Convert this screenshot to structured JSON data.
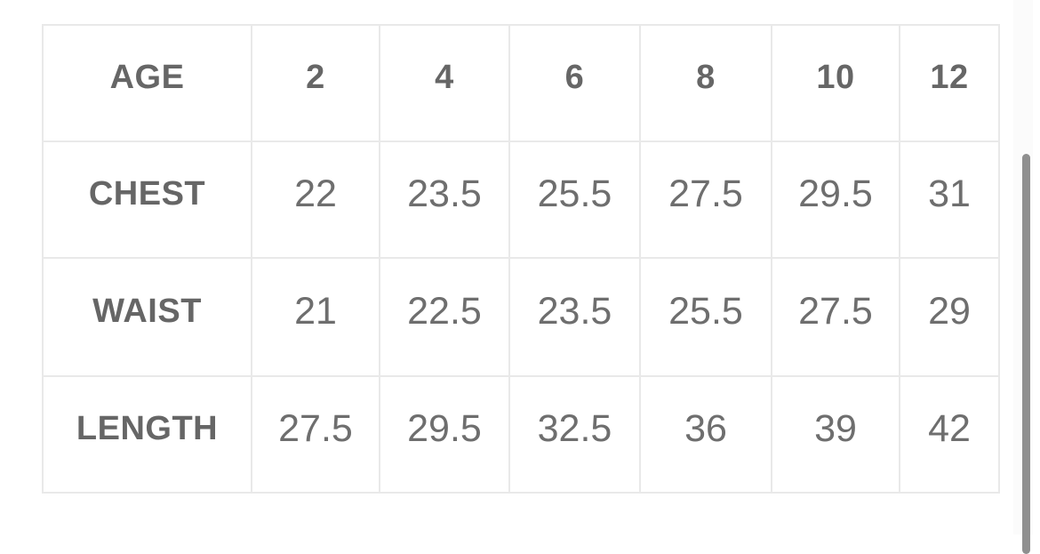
{
  "size_chart": {
    "columns": [
      "AGE",
      "2",
      "4",
      "6",
      "8",
      "10",
      "12"
    ],
    "rows": [
      {
        "label": "CHEST",
        "values": [
          "22",
          "23.5",
          "25.5",
          "27.5",
          "29.5",
          "31"
        ]
      },
      {
        "label": "WAIST",
        "values": [
          "21",
          "22.5",
          "23.5",
          "25.5",
          "27.5",
          "29"
        ]
      },
      {
        "label": "LENGTH",
        "values": [
          "27.5",
          "29.5",
          "32.5",
          "36",
          "39",
          "42"
        ]
      }
    ]
  },
  "chart_data": {
    "type": "table",
    "columns": [
      "AGE",
      "2",
      "4",
      "6",
      "8",
      "10",
      "12"
    ],
    "rows": [
      [
        "CHEST",
        22,
        23.5,
        25.5,
        27.5,
        29.5,
        31
      ],
      [
        "WAIST",
        21,
        22.5,
        23.5,
        25.5,
        27.5,
        29
      ],
      [
        "LENGTH",
        27.5,
        29.5,
        32.5,
        36,
        39,
        42
      ]
    ]
  },
  "colors": {
    "background": "#ffffff",
    "text_bold": "#666666",
    "text_value": "#6e6e6e",
    "gridline": "#e9e9e9",
    "scrollbar_thumb": "#8f8f8f"
  }
}
